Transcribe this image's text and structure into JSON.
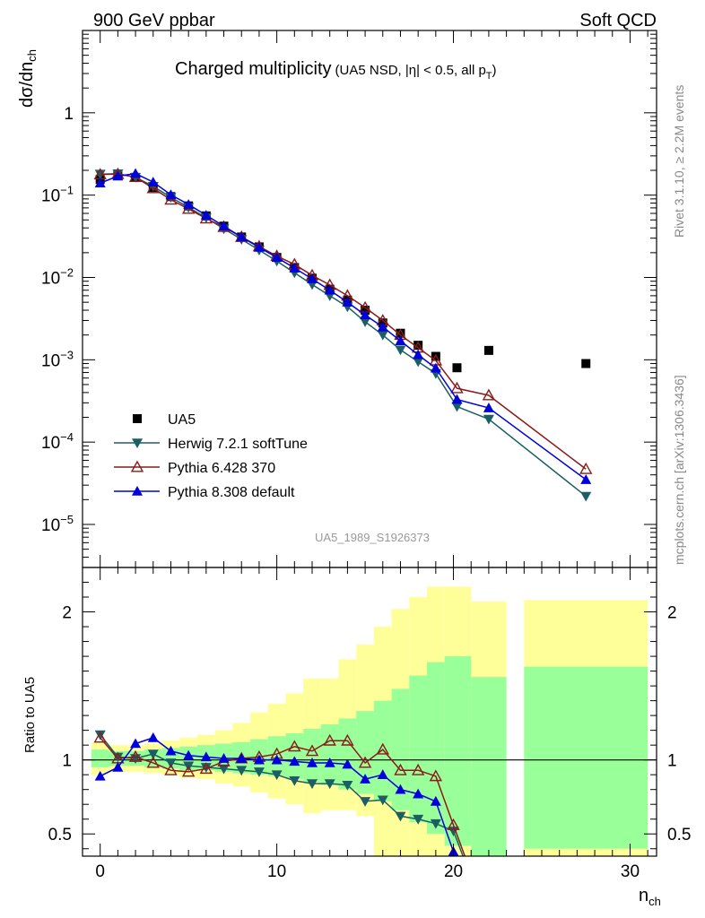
{
  "header": {
    "left": "900 GeV ppbar",
    "right": "Soft QCD"
  },
  "side_labels": {
    "top": "Rivet 3.1.10, ≥ 2.2M events",
    "bottom": "mcplots.cern.ch [arXiv:1306.3436]"
  },
  "chart_data": [
    {
      "type": "scatter",
      "title": "Charged multiplicity",
      "subtitle": "(UA5 NSD, |η| < 0.5, all p",
      "subtitle_sub": "T",
      "subtitle_end": ")",
      "ylabel": "dσ/dn",
      "ylabel_sub": "ch",
      "yscale": "log",
      "ylim": [
        3e-06,
        10
      ],
      "xlim": [
        -1,
        31.5
      ],
      "y_tick_labels": [
        {
          "base": "1",
          "exp": ""
        },
        {
          "base": "10",
          "exp": "−1"
        },
        {
          "base": "10",
          "exp": "−2"
        },
        {
          "base": "10",
          "exp": "−3"
        },
        {
          "base": "10",
          "exp": "−4"
        },
        {
          "base": "10",
          "exp": "−5"
        }
      ],
      "y_tick_values": [
        1,
        0.1,
        0.01,
        0.001,
        0.0001,
        1e-05
      ],
      "watermark": "UA5_1989_S1926373",
      "legend_position": "lower-left",
      "series": [
        {
          "name": "UA5",
          "color": "#000000",
          "marker": "square",
          "x": [
            0,
            1,
            2,
            3,
            4,
            5,
            6,
            7,
            8,
            9,
            10,
            11,
            12,
            13,
            14,
            15,
            16,
            17,
            18,
            19,
            20.2,
            22,
            27.5
          ],
          "y": [
            0.155,
            0.178,
            0.164,
            0.124,
            0.096,
            0.074,
            0.056,
            0.042,
            0.031,
            0.0235,
            0.0175,
            0.0132,
            0.0098,
            0.0072,
            0.0053,
            0.004,
            0.0028,
            0.0021,
            0.0015,
            0.0011,
            0.0008,
            0.0013,
            0.0009
          ]
        },
        {
          "name": "Herwig 7.2.1 softTune",
          "color": "#1b5e63",
          "marker": "triangle-down",
          "x": [
            0,
            1,
            2,
            3,
            4,
            5,
            6,
            7,
            8,
            9,
            10,
            11,
            12,
            13,
            14,
            15,
            16,
            17,
            18,
            19,
            20.2,
            22,
            27.5
          ],
          "y": [
            0.18,
            0.182,
            0.165,
            0.128,
            0.094,
            0.071,
            0.053,
            0.039,
            0.029,
            0.0215,
            0.0158,
            0.0114,
            0.0082,
            0.006,
            0.0044,
            0.0029,
            0.002,
            0.00132,
            0.00095,
            0.00068,
            0.00027,
            0.00019,
            2.2e-05
          ]
        },
        {
          "name": "Pythia 6.428 370",
          "color": "#8b1a1a",
          "marker": "triangle-up-open",
          "x": [
            0,
            1,
            2,
            3,
            4,
            5,
            6,
            7,
            8,
            9,
            10,
            11,
            12,
            13,
            14,
            15,
            16,
            17,
            18,
            19,
            20.2,
            22,
            27.5
          ],
          "y": [
            0.178,
            0.18,
            0.166,
            0.121,
            0.088,
            0.068,
            0.052,
            0.041,
            0.031,
            0.0238,
            0.0182,
            0.0144,
            0.0106,
            0.0081,
            0.006,
            0.0043,
            0.003,
            0.002,
            0.0014,
            0.00098,
            0.00045,
            0.00037,
            4.7e-05
          ]
        },
        {
          "name": "Pythia 8.308 default",
          "color": "#0000dd",
          "marker": "triangle-up",
          "x": [
            0,
            1,
            2,
            3,
            4,
            5,
            6,
            7,
            8,
            9,
            10,
            11,
            12,
            13,
            14,
            15,
            16,
            17,
            18,
            19,
            20.2,
            22,
            27.5
          ],
          "y": [
            0.14,
            0.17,
            0.183,
            0.144,
            0.101,
            0.077,
            0.057,
            0.042,
            0.031,
            0.0232,
            0.0175,
            0.013,
            0.0096,
            0.007,
            0.005,
            0.0035,
            0.0025,
            0.0017,
            0.00115,
            0.00079,
            0.00033,
            0.00026,
            3.5e-05
          ]
        }
      ]
    },
    {
      "type": "line",
      "ylabel": "Ratio to UA5",
      "xlabel": "n",
      "xlabel_sub": "ch",
      "ylim": [
        0.35,
        2.3
      ],
      "xlim": [
        -1,
        31.5
      ],
      "x_ticks": [
        0,
        10,
        20,
        30
      ],
      "y_ticks": [
        0.5,
        1,
        2
      ],
      "reference_line": 1,
      "bands": {
        "edges": [
          -0.5,
          0.5,
          1.5,
          2.5,
          3.5,
          4.5,
          5.5,
          6.5,
          7.5,
          8.5,
          9.5,
          10.5,
          11.5,
          12.5,
          13.5,
          14.5,
          15.5,
          16.5,
          17.5,
          18.5,
          19.5,
          21,
          23,
          24,
          31
        ],
        "inner": [
          [
            0.95,
            1.07
          ],
          [
            0.96,
            1.06
          ],
          [
            0.96,
            1.06
          ],
          [
            0.95,
            1.07
          ],
          [
            0.94,
            1.08
          ],
          [
            0.93,
            1.09
          ],
          [
            0.93,
            1.1
          ],
          [
            0.92,
            1.11
          ],
          [
            0.91,
            1.12
          ],
          [
            0.9,
            1.14
          ],
          [
            0.89,
            1.16
          ],
          [
            0.87,
            1.18
          ],
          [
            0.85,
            1.21
          ],
          [
            0.83,
            1.24
          ],
          [
            0.8,
            1.28
          ],
          [
            0.77,
            1.33
          ],
          [
            0.72,
            1.4
          ],
          [
            0.66,
            1.48
          ],
          [
            0.58,
            1.57
          ],
          [
            0.5,
            1.66
          ],
          [
            0.42,
            1.7
          ],
          [
            0.35,
            1.56
          ],
          null,
          [
            0.4,
            1.63
          ]
        ],
        "outer": [
          [
            0.9,
            1.12
          ],
          [
            0.92,
            1.1
          ],
          [
            0.92,
            1.1
          ],
          [
            0.91,
            1.11
          ],
          [
            0.9,
            1.13
          ],
          [
            0.88,
            1.15
          ],
          [
            0.87,
            1.17
          ],
          [
            0.84,
            1.2
          ],
          [
            0.82,
            1.25
          ],
          [
            0.78,
            1.32
          ],
          [
            0.74,
            1.38
          ],
          [
            0.7,
            1.45
          ],
          [
            0.64,
            1.55
          ],
          [
            0.66,
            1.55
          ],
          [
            0.66,
            1.68
          ],
          [
            0.62,
            1.78
          ],
          [
            0.35,
            1.9
          ],
          [
            0.35,
            2.02
          ],
          [
            0.35,
            2.1
          ],
          [
            0.35,
            2.17
          ],
          [
            0.35,
            2.17
          ],
          [
            0.35,
            2.07
          ],
          null,
          [
            0.35,
            2.08
          ]
        ]
      },
      "series": [
        {
          "name": "Herwig 7.2.1 softTune",
          "color": "#1b5e63",
          "marker": "triangle-down",
          "x": [
            0,
            1,
            2,
            3,
            4,
            5,
            6,
            7,
            8,
            9,
            10,
            11,
            12,
            13,
            14,
            15,
            16,
            17,
            18,
            19,
            20,
            20.7
          ],
          "y": [
            1.17,
            1.02,
            1.01,
            1.04,
            0.98,
            0.96,
            0.95,
            0.94,
            0.93,
            0.92,
            0.9,
            0.86,
            0.84,
            0.84,
            0.83,
            0.72,
            0.73,
            0.62,
            0.6,
            0.57,
            0.52,
            0.3
          ]
        },
        {
          "name": "Pythia 6.428 370",
          "color": "#8b1a1a",
          "marker": "triangle-up-open",
          "x": [
            0,
            1,
            2,
            3,
            4,
            5,
            6,
            7,
            8,
            9,
            10,
            11,
            12,
            13,
            14,
            15,
            16,
            17,
            18,
            19,
            20,
            20.8
          ],
          "y": [
            1.15,
            1.01,
            1.02,
            0.98,
            0.93,
            0.92,
            0.94,
            0.99,
            1.01,
            1.02,
            1.04,
            1.09,
            1.06,
            1.13,
            1.13,
            0.98,
            1.07,
            0.93,
            0.93,
            0.89,
            0.56,
            0.3
          ]
        },
        {
          "name": "Pythia 8.308 default",
          "color": "#0000dd",
          "marker": "triangle-up",
          "x": [
            0,
            1,
            2,
            3,
            4,
            5,
            6,
            7,
            8,
            9,
            10,
            11,
            12,
            13,
            14,
            15,
            16,
            17,
            18,
            19,
            20,
            20.6
          ],
          "y": [
            0.89,
            0.95,
            1.11,
            1.15,
            1.06,
            1.03,
            1.02,
            1.01,
            1.01,
            1.0,
            1.0,
            0.99,
            0.98,
            0.98,
            0.97,
            0.87,
            0.9,
            0.8,
            0.77,
            0.72,
            0.38,
            0.3
          ]
        }
      ]
    }
  ]
}
